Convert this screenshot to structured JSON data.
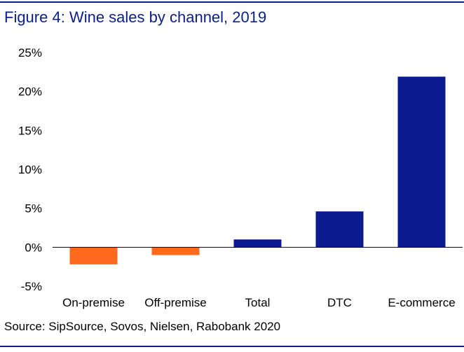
{
  "figure": {
    "title": "Figure 4: Wine sales by channel, 2019",
    "source": "Source: SipSource, Sovos, Nielsen, Rabobank 2020"
  },
  "colors": {
    "rule": "#0b1f8a",
    "title": "#0b1f8a",
    "positive": "#0b1a8e",
    "negative": "#ff6a1f",
    "axis": "#000000"
  },
  "chart_data": {
    "type": "bar",
    "categories": [
      "On-premise",
      "Off-premise",
      "Total",
      "DTC",
      "E-commerce"
    ],
    "values": [
      -2.2,
      -1.0,
      1.0,
      4.6,
      21.9
    ],
    "ylim": [
      -5,
      25
    ],
    "yticks": [
      -5,
      0,
      5,
      10,
      15,
      20,
      25
    ],
    "ytick_labels": [
      "-5%",
      "0%",
      "5%",
      "10%",
      "15%",
      "20%",
      "25%"
    ],
    "xlabel": "",
    "ylabel": "",
    "grid": false,
    "legend": "none"
  }
}
